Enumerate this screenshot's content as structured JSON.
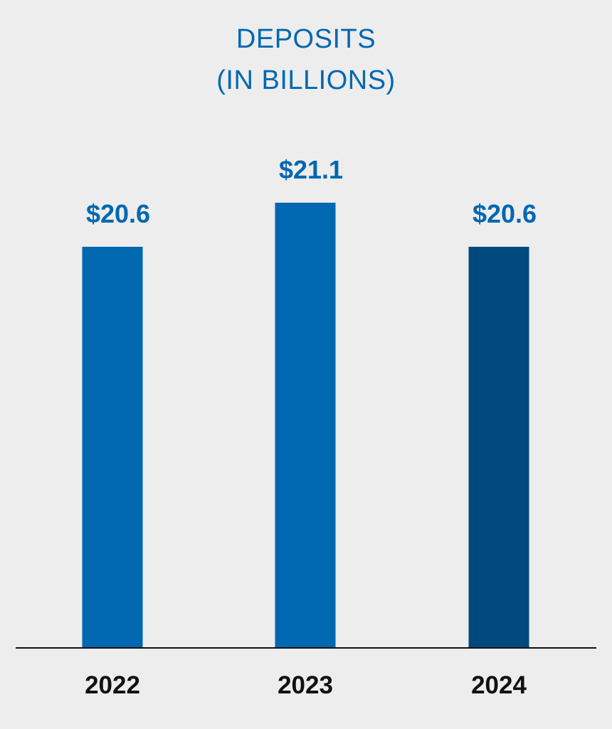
{
  "chart_data": {
    "type": "bar",
    "title_lines": [
      "DEPOSITS",
      "(IN BILLIONS)"
    ],
    "categories": [
      "2022",
      "2023",
      "2024"
    ],
    "values": [
      20.6,
      21.1,
      20.6
    ],
    "value_labels": [
      "$20.6",
      "$21.1",
      "$20.6"
    ],
    "xlabel": "",
    "ylabel": "",
    "grid": false,
    "legend": "none",
    "colors": {
      "bars": [
        "#0067b1",
        "#0067b1",
        "#00497f"
      ],
      "value_label": "#0067b1",
      "title": "#0067b1",
      "axis": "#111111",
      "background": "#ededed"
    }
  }
}
